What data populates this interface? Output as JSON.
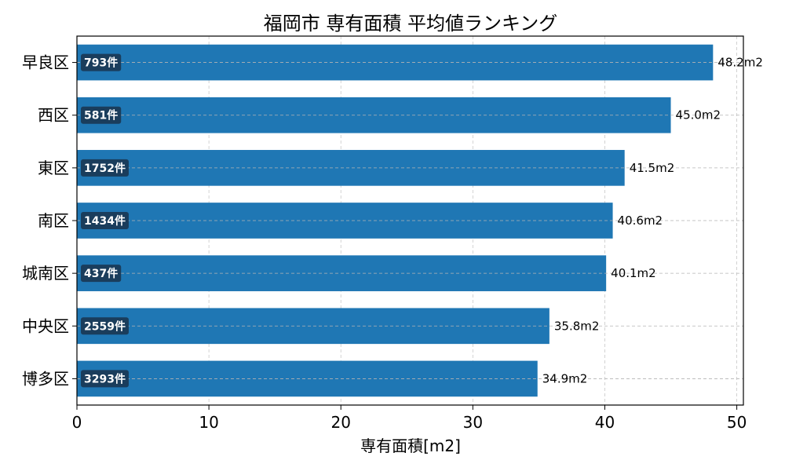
{
  "chart_data": {
    "type": "bar",
    "orientation": "horizontal",
    "title": "福岡市 専有面積 平均値ランキング",
    "xlabel": "専有面積[m2]",
    "ylabel": "",
    "xlim": [
      0,
      50.5
    ],
    "xticks": [
      0,
      10,
      20,
      30,
      40,
      50
    ],
    "grid": true,
    "categories": [
      "早良区",
      "西区",
      "東区",
      "南区",
      "城南区",
      "中央区",
      "博多区"
    ],
    "values": [
      48.2,
      45.0,
      41.5,
      40.6,
      40.1,
      35.8,
      34.9
    ],
    "value_labels": [
      "48.2m2",
      "45.0m2",
      "41.5m2",
      "40.6m2",
      "40.1m2",
      "35.8m2",
      "34.9m2"
    ],
    "counts": [
      "793件",
      "581件",
      "1752件",
      "1434件",
      "437件",
      "2559件",
      "3293件"
    ],
    "bar_color": "#1f77b4",
    "count_badge_color": "#1a3d5c"
  }
}
